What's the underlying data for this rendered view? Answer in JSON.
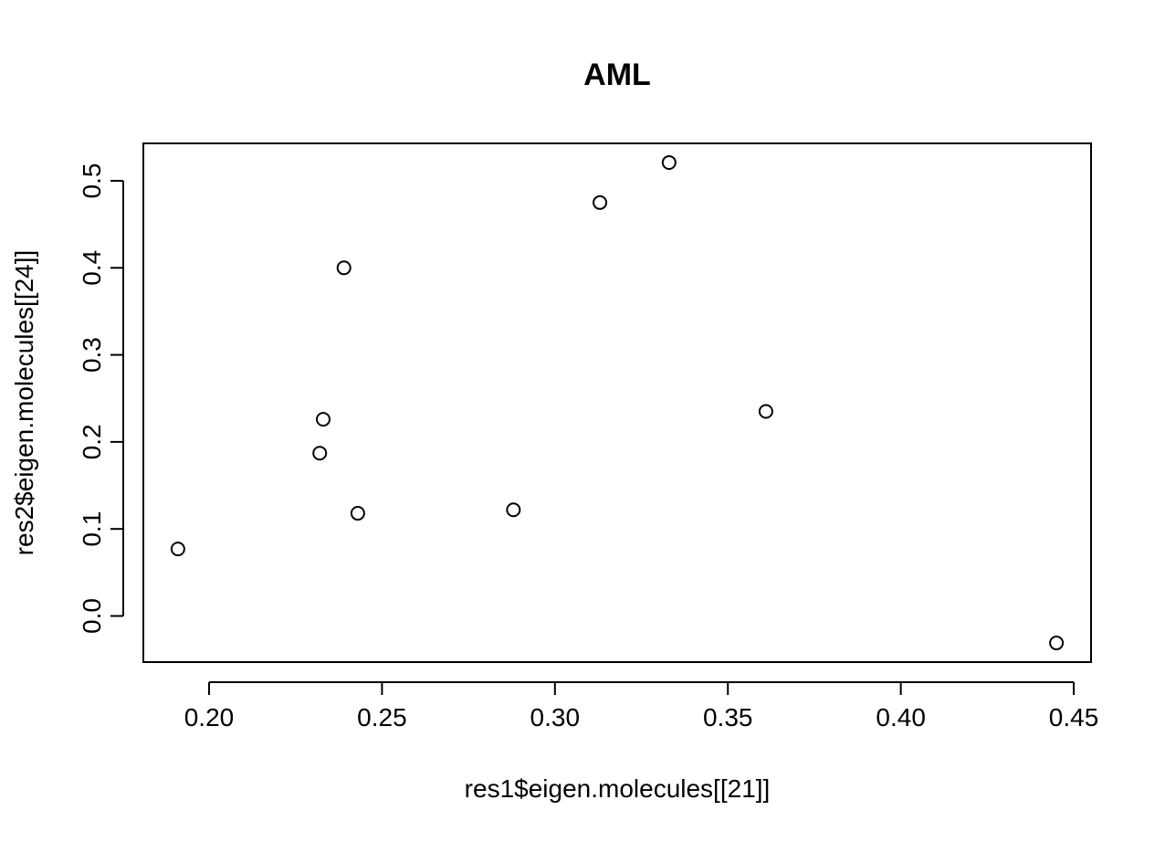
{
  "chart_data": {
    "type": "scatter",
    "title": "AML",
    "xlabel": "res1$eigen.molecules[[21]]",
    "ylabel": "res2$eigen.molecules[[24]]",
    "xlim": [
      0.181,
      0.455
    ],
    "ylim": [
      -0.053,
      0.543
    ],
    "x_ticks": [
      0.2,
      0.25,
      0.3,
      0.35,
      0.4,
      0.45
    ],
    "x_tick_labels": [
      "0.20",
      "0.25",
      "0.30",
      "0.35",
      "0.40",
      "0.45"
    ],
    "y_ticks": [
      0.0,
      0.1,
      0.2,
      0.3,
      0.4,
      0.5
    ],
    "y_tick_labels": [
      "0.0",
      "0.1",
      "0.2",
      "0.3",
      "0.4",
      "0.5"
    ],
    "grid": false,
    "marker": "open-circle",
    "points": [
      {
        "x": 0.191,
        "y": 0.077
      },
      {
        "x": 0.232,
        "y": 0.187
      },
      {
        "x": 0.233,
        "y": 0.226
      },
      {
        "x": 0.239,
        "y": 0.4
      },
      {
        "x": 0.243,
        "y": 0.118
      },
      {
        "x": 0.288,
        "y": 0.122
      },
      {
        "x": 0.313,
        "y": 0.475
      },
      {
        "x": 0.333,
        "y": 0.521
      },
      {
        "x": 0.361,
        "y": 0.235
      },
      {
        "x": 0.445,
        "y": -0.031
      }
    ],
    "colors": {
      "marker": "#000000",
      "axis": "#000000",
      "background": "#ffffff"
    }
  }
}
